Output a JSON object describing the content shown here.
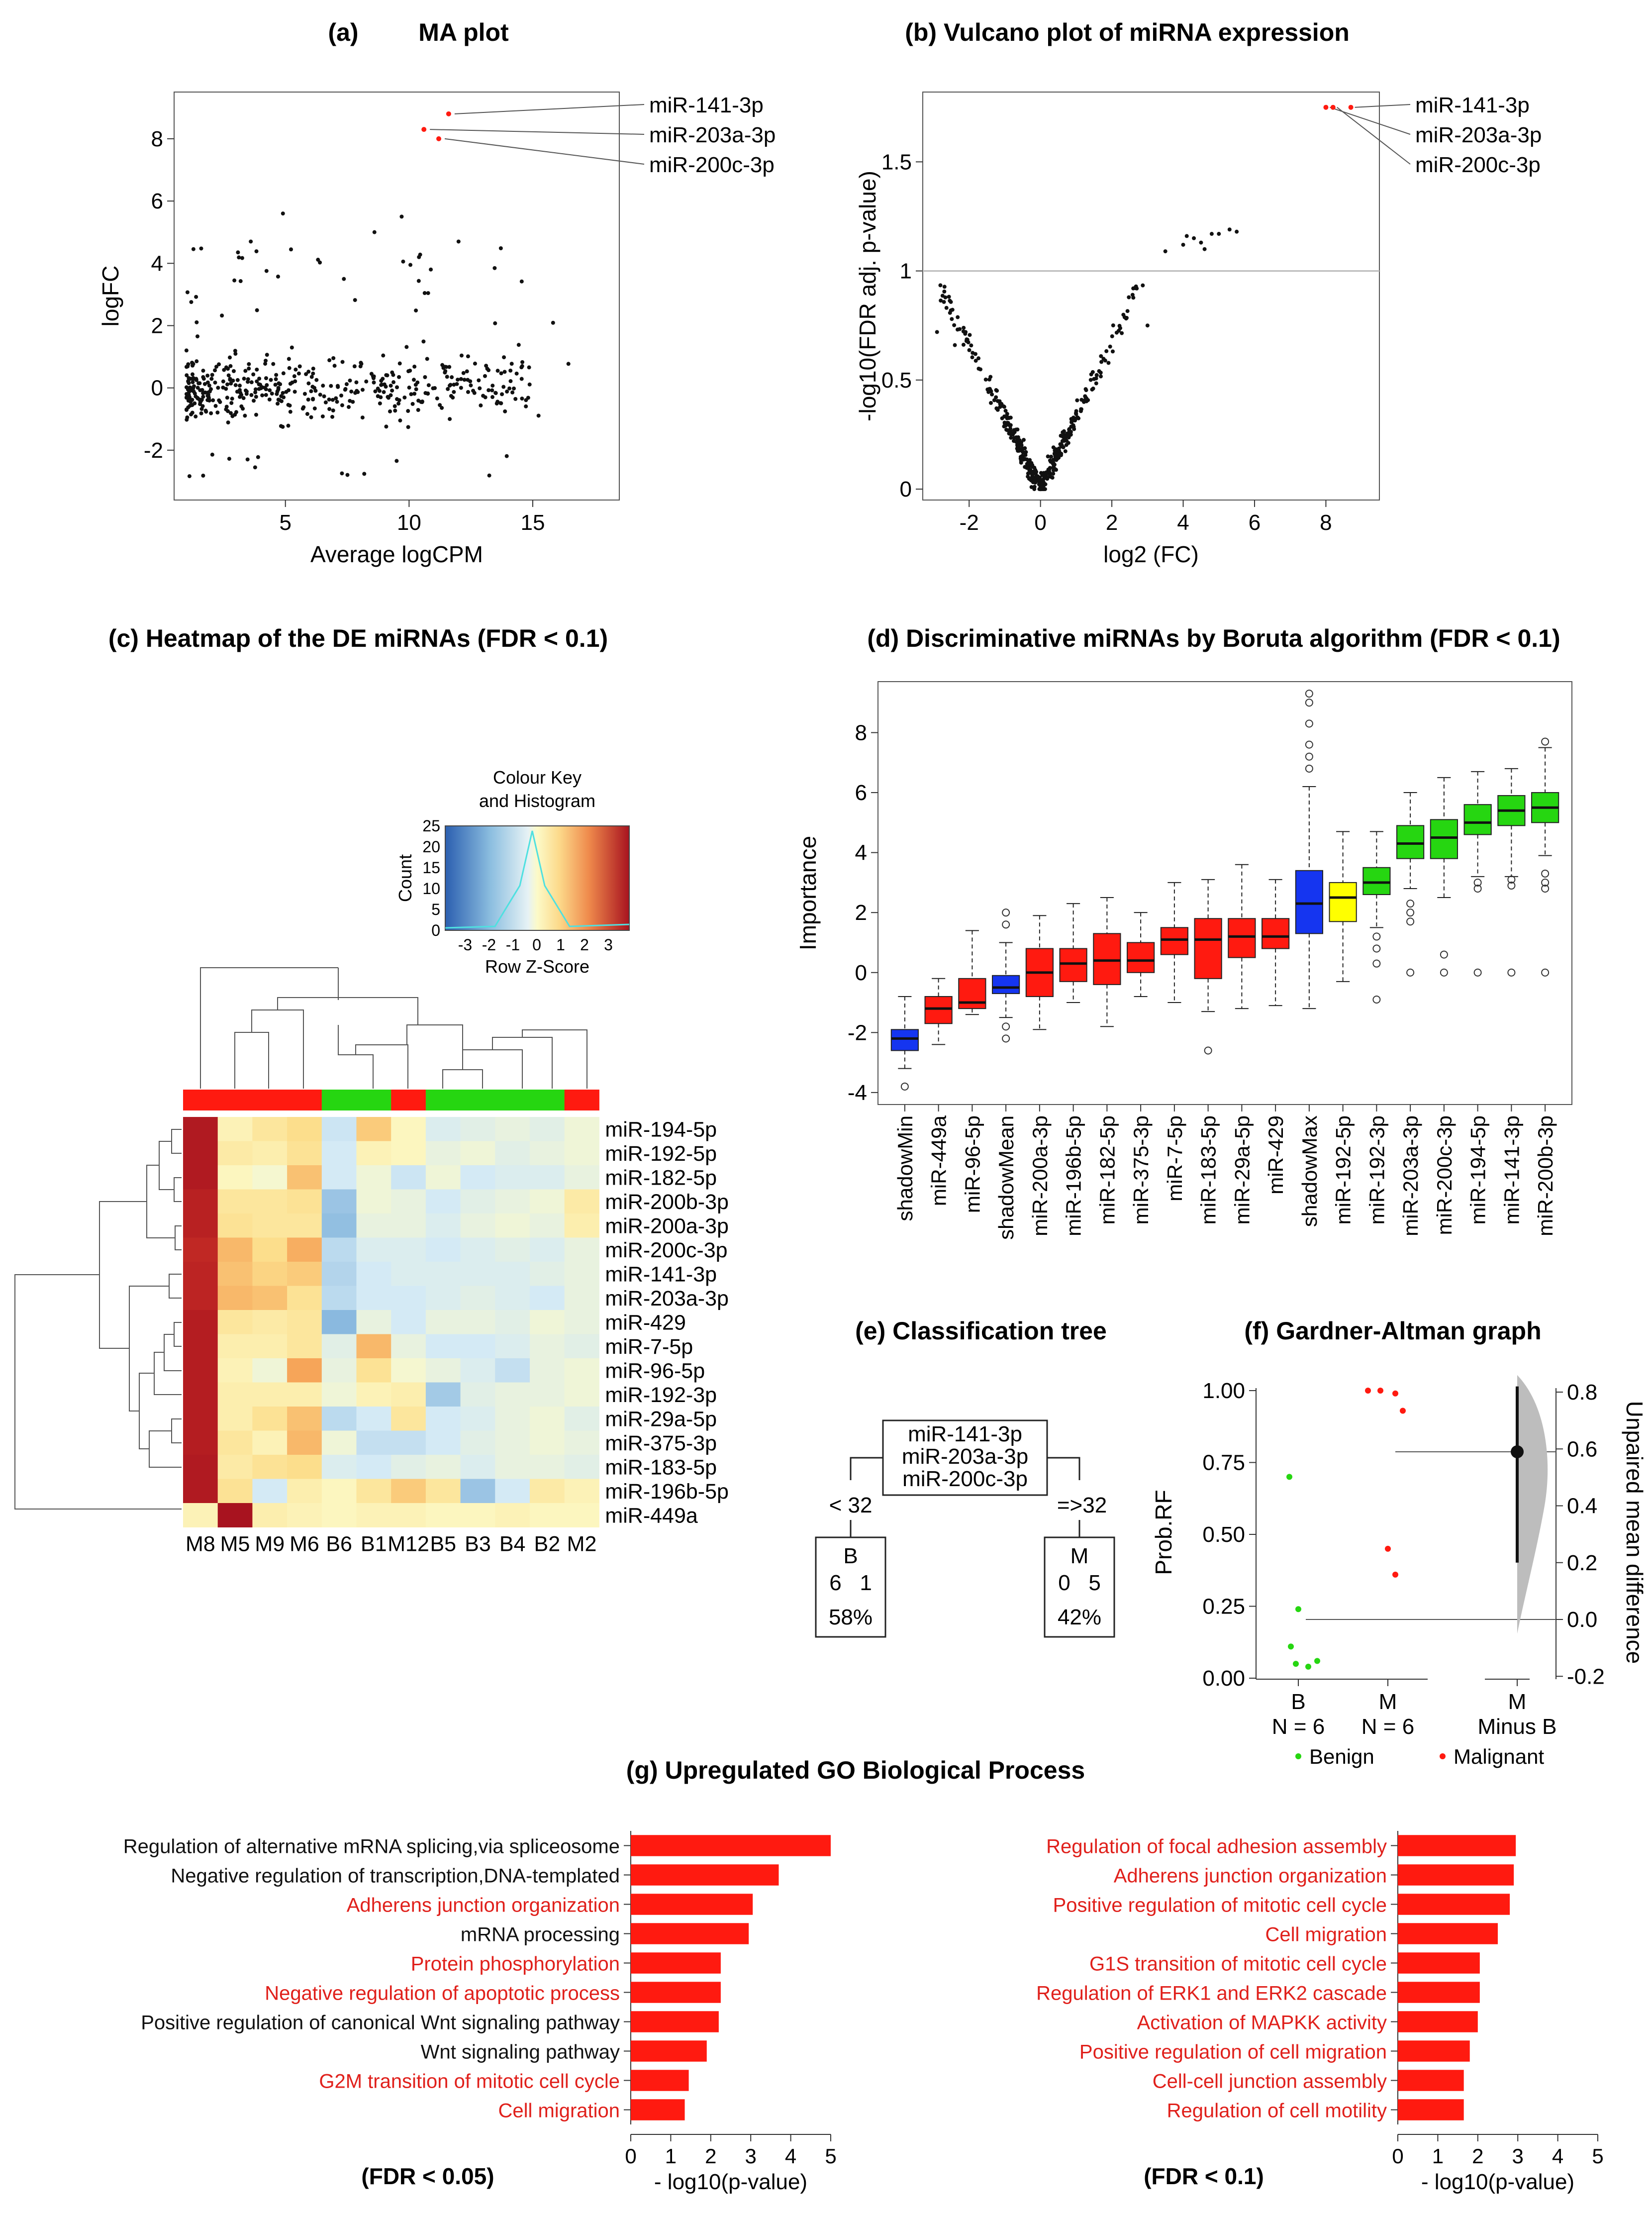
{
  "colors": {
    "red": "#ff1a10",
    "green": "#26d611",
    "blue": "#1535f0",
    "yellow": "#ffff00",
    "heat_low": "#2b5fb0",
    "heat_high": "#a8131f",
    "text_red": "#e0201b",
    "text_black": "#111111",
    "grey": "#aaaaaa"
  },
  "chart_data": [
    {
      "id": "a",
      "type": "scatter",
      "panel_letter": "(a)",
      "title": "MA plot",
      "xlabel": "Average logCPM",
      "ylabel": "logFC",
      "xlim": [
        0.5,
        18.5
      ],
      "ylim": [
        -3.6,
        9.5
      ],
      "xticks": [
        5,
        10,
        15
      ],
      "yticks": [
        -2,
        0,
        2,
        4,
        6,
        8
      ],
      "highlighted": [
        {
          "label": "miR-141-3p",
          "x": 11.6,
          "y": 8.8
        },
        {
          "label": "miR-203a-3p",
          "x": 10.6,
          "y": 8.3
        },
        {
          "label": "miR-200c-3p",
          "x": 11.2,
          "y": 8.0
        }
      ],
      "scatter_description": "~500 points, logCPM 1-17, logFC mostly -2 to 2, some outliers up to 5.5"
    },
    {
      "id": "b",
      "type": "scatter",
      "panel_letter": "(b)",
      "title": "Vulcano plot of miRNA expression",
      "xlabel": "log2 (FC)",
      "ylabel": "-log10(FDR adj. p-value)",
      "xlim": [
        -3.3,
        9.5
      ],
      "ylim": [
        -0.05,
        1.82
      ],
      "xticks": [
        -2,
        0,
        2,
        4,
        6,
        8
      ],
      "ytick_labels": [
        "0",
        "0.5",
        "1",
        "1.5"
      ],
      "yticks": [
        0,
        0.5,
        1,
        1.5
      ],
      "threshold_line": 1,
      "highlighted": [
        {
          "label": "miR-141-3p",
          "x": 8.7,
          "y": 1.75
        },
        {
          "label": "miR-203a-3p",
          "x": 8.0,
          "y": 1.75
        },
        {
          "label": "miR-200c-3p",
          "x": 8.2,
          "y": 1.75
        }
      ]
    },
    {
      "id": "c",
      "type": "heatmap",
      "panel_letter": "(c)",
      "title": "Heatmap of the DE miRNAs (FDR < 0.1)",
      "key_title": [
        "Colour Key",
        "and Histogram"
      ],
      "key_xlabel": "Row Z-Score",
      "key_ylabel": "Count",
      "key_xticks": [
        "-3",
        "-2",
        "-1",
        "0",
        "1",
        "2",
        "3"
      ],
      "key_yticks": [
        "0",
        "5",
        "10",
        "15",
        "20",
        "25"
      ],
      "columns": [
        "M8",
        "M5",
        "M9",
        "M6",
        "B6",
        "B1",
        "M12",
        "B5",
        "B3",
        "B4",
        "B2",
        "M2"
      ],
      "column_groups": [
        "M",
        "M",
        "M",
        "M",
        "B",
        "B",
        "M",
        "B",
        "B",
        "B",
        "B",
        "M"
      ],
      "rows": [
        "miR-194-5p",
        "miR-192-5p",
        "miR-182-5p",
        "miR-200b-3p",
        "miR-200a-3p",
        "miR-200c-3p",
        "miR-141-3p",
        "miR-203a-3p",
        "miR-429",
        "miR-7-5p",
        "miR-96-5p",
        "miR-192-3p",
        "miR-29a-5p",
        "miR-375-3p",
        "miR-183-5p",
        "miR-196b-5p",
        "miR-449a"
      ],
      "z_scores": [
        [
          3.2,
          0.2,
          0.5,
          0.7,
          -0.7,
          0.9,
          0.1,
          -0.5,
          -0.4,
          -0.3,
          -0.4,
          -0.2
        ],
        [
          3.2,
          0.4,
          0.3,
          0.6,
          -0.6,
          0.2,
          0.1,
          -0.3,
          -0.2,
          -0.4,
          -0.3,
          -0.2
        ],
        [
          3.2,
          0.1,
          -0.1,
          1.0,
          -0.6,
          -0.2,
          -0.7,
          -0.2,
          -0.6,
          -0.5,
          -0.5,
          -0.3
        ],
        [
          3.0,
          0.5,
          0.5,
          0.6,
          -1.3,
          -0.2,
          -0.3,
          -0.6,
          -0.4,
          -0.3,
          -0.2,
          0.4
        ],
        [
          3.0,
          0.6,
          0.5,
          0.5,
          -1.4,
          -0.3,
          -0.3,
          -0.5,
          -0.3,
          -0.2,
          -0.3,
          0.3
        ],
        [
          2.8,
          1.1,
          0.7,
          1.2,
          -0.9,
          -0.5,
          -0.5,
          -0.6,
          -0.5,
          -0.4,
          -0.5,
          -0.3
        ],
        [
          2.9,
          1.0,
          0.8,
          0.9,
          -1.0,
          -0.6,
          -0.5,
          -0.5,
          -0.5,
          -0.5,
          -0.4,
          -0.3
        ],
        [
          2.9,
          1.1,
          1.0,
          0.6,
          -0.9,
          -0.6,
          -0.6,
          -0.5,
          -0.4,
          -0.5,
          -0.6,
          -0.3
        ],
        [
          3.1,
          0.5,
          0.4,
          0.5,
          -1.5,
          -0.3,
          -0.6,
          -0.3,
          -0.3,
          -0.4,
          -0.2,
          -0.3
        ],
        [
          3.1,
          0.3,
          0.3,
          0.5,
          -0.4,
          1.1,
          -0.3,
          -0.6,
          -0.6,
          -0.5,
          -0.3,
          -0.4
        ],
        [
          3.1,
          0.2,
          -0.2,
          1.3,
          -0.3,
          0.6,
          -0.1,
          -0.3,
          -0.5,
          -0.8,
          -0.3,
          -0.2
        ],
        [
          3.1,
          0.3,
          0.3,
          0.3,
          -0.2,
          0.2,
          0.3,
          -1.2,
          -0.4,
          -0.3,
          -0.3,
          -0.2
        ],
        [
          3.1,
          0.3,
          0.6,
          1.0,
          -0.9,
          -0.6,
          0.5,
          -0.6,
          -0.5,
          -0.3,
          -0.2,
          -0.4
        ],
        [
          3.1,
          0.5,
          0.2,
          1.1,
          -0.2,
          -0.8,
          -0.8,
          -0.6,
          -0.4,
          -0.3,
          -0.2,
          -0.3
        ],
        [
          3.2,
          0.4,
          0.6,
          0.7,
          -0.5,
          -0.6,
          -0.4,
          -0.3,
          -0.5,
          -0.3,
          -0.3,
          -0.4
        ],
        [
          3.2,
          0.6,
          -0.6,
          0.3,
          0.1,
          0.5,
          0.9,
          0.5,
          -1.3,
          -0.6,
          0.4,
          0.2
        ],
        [
          0.2,
          3.4,
          0.3,
          0.2,
          0.1,
          0.2,
          0.2,
          0.1,
          0.1,
          0.2,
          0.1,
          0.1
        ]
      ]
    },
    {
      "id": "d",
      "type": "boxplot",
      "panel_letter": "(d)",
      "title": "Discriminative miRNAs by Boruta algorithm (FDR < 0.1)",
      "ylabel": "Importance",
      "ylim": [
        -4.4,
        9.7
      ],
      "yticks": [
        -4,
        -2,
        0,
        2,
        4,
        6,
        8
      ],
      "categories": [
        "shadowMin",
        "miR-449a",
        "miR-96-5p",
        "shadowMean",
        "miR-200a-3p",
        "miR-196b-5p",
        "miR-182-5p",
        "miR-375-3p",
        "miR-7-5p",
        "miR-183-5p",
        "miR-29a-5p",
        "miR-429",
        "shadowMax",
        "miR-192-5p",
        "miR-192-3p",
        "miR-203a-3p",
        "miR-200c-3p",
        "miR-194-5p",
        "miR-141-3p",
        "miR-200b-3p"
      ],
      "box_colors": [
        "blue",
        "red",
        "red",
        "blue",
        "red",
        "red",
        "red",
        "red",
        "red",
        "red",
        "red",
        "red",
        "blue",
        "yellow",
        "green",
        "green",
        "green",
        "green",
        "green",
        "green"
      ],
      "boxes": [
        {
          "min": -3.2,
          "q1": -2.6,
          "median": -2.2,
          "q3": -1.9,
          "max": -0.8,
          "outliers": [
            -3.8
          ]
        },
        {
          "min": -2.4,
          "q1": -1.7,
          "median": -1.2,
          "q3": -0.8,
          "max": -0.2,
          "outliers": []
        },
        {
          "min": -1.4,
          "q1": -1.2,
          "median": -1.0,
          "q3": -0.2,
          "max": 1.4,
          "outliers": []
        },
        {
          "min": -1.5,
          "q1": -0.7,
          "median": -0.5,
          "q3": -0.1,
          "max": 1.0,
          "outliers": [
            -1.8,
            -2.2,
            1.6,
            2.0
          ]
        },
        {
          "min": -1.9,
          "q1": -0.8,
          "median": 0.0,
          "q3": 0.8,
          "max": 1.9,
          "outliers": []
        },
        {
          "min": -1.0,
          "q1": -0.3,
          "median": 0.3,
          "q3": 0.8,
          "max": 2.3,
          "outliers": []
        },
        {
          "min": -1.8,
          "q1": -0.4,
          "median": 0.4,
          "q3": 1.3,
          "max": 2.5,
          "outliers": []
        },
        {
          "min": -0.8,
          "q1": 0.0,
          "median": 0.4,
          "q3": 1.0,
          "max": 2.0,
          "outliers": []
        },
        {
          "min": -1.0,
          "q1": 0.6,
          "median": 1.1,
          "q3": 1.5,
          "max": 3.0,
          "outliers": []
        },
        {
          "min": -1.3,
          "q1": -0.2,
          "median": 1.1,
          "q3": 1.8,
          "max": 3.1,
          "outliers": [
            -2.6
          ]
        },
        {
          "min": -1.2,
          "q1": 0.5,
          "median": 1.2,
          "q3": 1.8,
          "max": 3.6,
          "outliers": []
        },
        {
          "min": -1.1,
          "q1": 0.8,
          "median": 1.2,
          "q3": 1.8,
          "max": 3.1,
          "outliers": []
        },
        {
          "min": -1.2,
          "q1": 1.3,
          "median": 2.3,
          "q3": 3.4,
          "max": 6.2,
          "outliers": [
            6.8,
            7.2,
            7.6,
            8.3,
            9.0,
            9.3
          ]
        },
        {
          "min": -0.3,
          "q1": 1.7,
          "median": 2.5,
          "q3": 3.0,
          "max": 4.7,
          "outliers": []
        },
        {
          "min": 1.5,
          "q1": 2.6,
          "median": 3.0,
          "q3": 3.5,
          "max": 4.7,
          "outliers": [
            1.2,
            0.8,
            0.3,
            -0.9
          ]
        },
        {
          "min": 2.8,
          "q1": 3.8,
          "median": 4.3,
          "q3": 4.9,
          "max": 6.0,
          "outliers": [
            2.3,
            2.0,
            1.7,
            0.0
          ]
        },
        {
          "min": 2.5,
          "q1": 3.8,
          "median": 4.5,
          "q3": 5.1,
          "max": 6.5,
          "outliers": [
            0.6,
            0.0
          ]
        },
        {
          "min": 3.2,
          "q1": 4.6,
          "median": 5.0,
          "q3": 5.6,
          "max": 6.7,
          "outliers": [
            3.0,
            2.8,
            0.0
          ]
        },
        {
          "min": 3.2,
          "q1": 4.9,
          "median": 5.4,
          "q3": 5.9,
          "max": 6.8,
          "outliers": [
            3.1,
            2.9,
            0.0
          ]
        },
        {
          "min": 3.9,
          "q1": 5.0,
          "median": 5.5,
          "q3": 6.0,
          "max": 7.5,
          "outliers": [
            7.7,
            3.3,
            3.0,
            2.8,
            0.0
          ]
        }
      ]
    },
    {
      "id": "f",
      "type": "scatter",
      "panel_letter": "(f)",
      "title": "Gardner-Altman graph",
      "ylabel": "Prob.RF",
      "ylabel_right": "Unpaired mean difference",
      "yticks": [
        "0.00",
        "0.25",
        "0.50",
        "0.75",
        "1.00"
      ],
      "yticks_right": [
        "-0.2",
        "0.0",
        "0.2",
        "0.4",
        "0.6",
        "0.8"
      ],
      "groups": [
        {
          "label": "B",
          "n_label": "N = 6",
          "values": [
            0.7,
            0.24,
            0.11,
            0.05,
            0.04,
            0.06
          ]
        },
        {
          "label": "M",
          "n_label": "N = 6",
          "values": [
            1.0,
            1.0,
            0.99,
            0.93,
            0.45,
            0.36
          ]
        }
      ],
      "difference": {
        "label": "M",
        "sublabel": "Minus B",
        "mean": 0.59,
        "ci_low": 0.2,
        "ci_high": 0.82
      },
      "legend": [
        "Benign",
        "Malignant"
      ]
    },
    {
      "id": "g1",
      "type": "bar",
      "orientation": "horizontal",
      "caption": "(FDR < 0.05)",
      "xlabel": "- log10(p-value)",
      "xlim": [
        0,
        5
      ],
      "xticks": [
        0,
        1,
        2,
        3,
        4,
        5
      ],
      "categories": [
        "Regulation of alternative mRNA splicing,via spliceosome",
        "Negative regulation of transcription,DNA-templated",
        "Adherens junction organization",
        "mRNA processing",
        "Protein phosphorylation",
        "Negative regulation of apoptotic process",
        "Positive regulation of canonical Wnt signaling pathway",
        "Wnt signaling pathway",
        "G2M transition of mitotic cell cycle",
        "Cell migration"
      ],
      "label_colors": [
        "black",
        "black",
        "red",
        "black",
        "red",
        "red",
        "black",
        "black",
        "red",
        "red"
      ],
      "values": [
        5.0,
        3.7,
        3.05,
        2.95,
        2.25,
        2.25,
        2.2,
        1.9,
        1.45,
        1.35
      ]
    },
    {
      "id": "g2",
      "type": "bar",
      "orientation": "horizontal",
      "caption": "(FDR < 0.1)",
      "xlabel": "- log10(p-value)",
      "xlim": [
        0,
        5
      ],
      "xticks": [
        0,
        1,
        2,
        3,
        4,
        5
      ],
      "categories": [
        "Regulation of focal adhesion assembly",
        "Adherens junction organization",
        "Positive regulation of mitotic cell cycle",
        "Cell migration",
        "G1S transition of mitotic cell cycle",
        "Regulation of ERK1 and ERK2 cascade",
        "Activation of MAPKK activity",
        "Positive regulation of cell migration",
        "Cell-cell junction assembly",
        "Regulation of cell motility"
      ],
      "label_colors": [
        "red",
        "red",
        "red",
        "red",
        "red",
        "red",
        "red",
        "red",
        "red",
        "red"
      ],
      "values": [
        2.95,
        2.9,
        2.8,
        2.5,
        2.05,
        2.05,
        2.0,
        1.8,
        1.65,
        1.65
      ]
    }
  ],
  "titles": {
    "a_letter": "(a)",
    "a": "MA plot",
    "b": "(b) Vulcano plot of miRNA expression",
    "c": "(c) Heatmap of the DE miRNAs (FDR < 0.1)",
    "d": "(d) Discriminative miRNAs by Boruta algorithm (FDR < 0.1)",
    "e": "(e) Classification tree",
    "f": "(f) Gardner-Altman graph",
    "g": "(g) Upregulated GO Biological Process"
  },
  "tree": {
    "root_lines": [
      "miR-141-3p",
      "miR-203a-3p",
      "miR-200c-3p"
    ],
    "left_edge": "< 32",
    "right_edge": "=>32",
    "left_leaf": {
      "class": "B",
      "counts": "6   1",
      "pct": "58%"
    },
    "right_leaf": {
      "class": "M",
      "counts": "0   5",
      "pct": "42%"
    }
  }
}
